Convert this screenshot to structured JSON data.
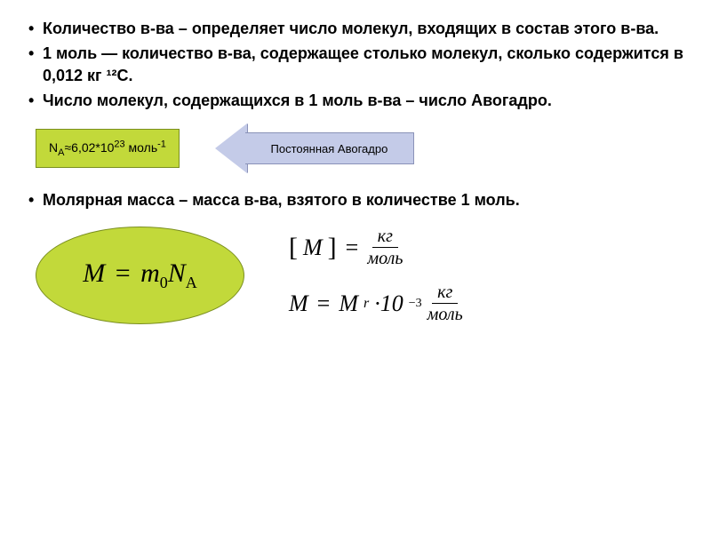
{
  "bullets_top": [
    "Количество в-ва – определяет число молекул, входящих в состав этого в-ва.",
    "1 моль — количество в-ва, содержащее столько молекул, сколько содержится в 0,012 кг ¹²С.",
    "Число молекул, содержащихся в 1 моль в-ва – число Авогадро."
  ],
  "avogadro_box": {
    "prefix": "N",
    "sub": "A",
    "approx": "≈6,02*10",
    "exp": "23",
    "suffix": " моль",
    "suffix_exp": "-1"
  },
  "arrow_label": "Постоянная Авогадро",
  "bullets_mid": [
    "Молярная масса – масса в-ва, взятого в количестве 1 моль."
  ],
  "ellipse_formula": {
    "M": "M",
    "eq": " = ",
    "m": "m",
    "m_sub": "0",
    "N": "N",
    "N_sub": "A"
  },
  "units": {
    "line1": {
      "M": "M",
      "num": "кг",
      "den": "моль"
    },
    "line2": {
      "M": "M",
      "Mr": "M",
      "r_sub": "r",
      "factor": "·10",
      "exp": "−3",
      "num": "кг",
      "den": "моль"
    }
  },
  "colors": {
    "box_bg": "#c2d93a",
    "box_border": "#7a8f1f",
    "arrow_bg": "#c4cbe8",
    "arrow_border": "#8a92b8"
  }
}
